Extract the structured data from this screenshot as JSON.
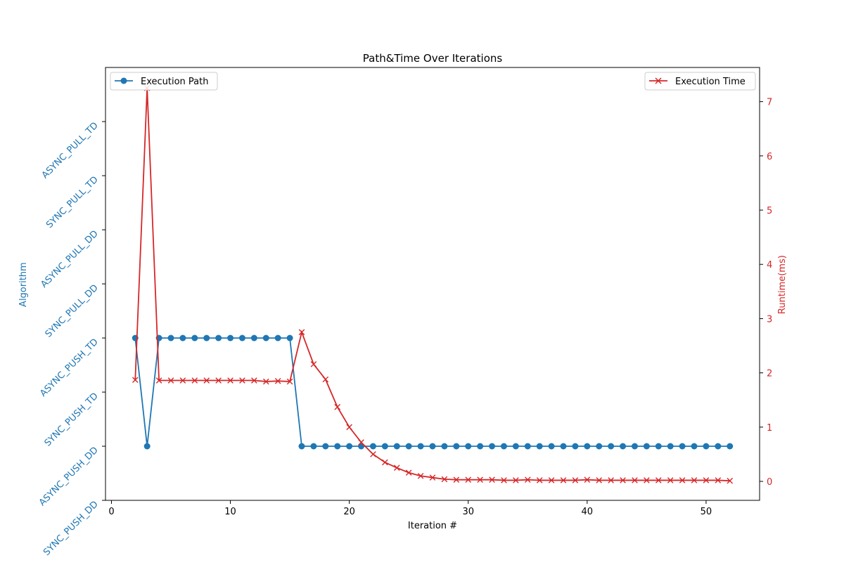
{
  "chart_data": {
    "type": "line",
    "title": "Path&Time Over Iterations",
    "xlabel": "Iteration #",
    "ylabel_left": "Algorithm",
    "ylabel_right": "Runtime(ms)",
    "x_ticks": [
      0,
      10,
      20,
      30,
      40,
      50
    ],
    "x_tick_labels": [
      "0",
      "10",
      "20",
      "30",
      "40",
      "50"
    ],
    "left_categories": [
      "SYNC_PUSH_DD",
      "ASYNC_PUSH_DD",
      "SYNC_PUSH_TD",
      "ASYNC_PUSH_TD",
      "SYNC_PULL_DD",
      "ASYNC_PULL_DD",
      "SYNC_PULL_TD",
      "ASYNC_PULL_TD"
    ],
    "right_ticks": [
      0,
      1,
      2,
      3,
      4,
      5,
      6,
      7
    ],
    "right_tick_labels": [
      "0",
      "1",
      "2",
      "3",
      "4",
      "5",
      "6",
      "7"
    ],
    "x": [
      2,
      3,
      4,
      5,
      6,
      7,
      8,
      9,
      10,
      11,
      12,
      13,
      14,
      15,
      16,
      17,
      18,
      19,
      20,
      21,
      22,
      23,
      24,
      25,
      26,
      27,
      28,
      29,
      30,
      31,
      32,
      33,
      34,
      35,
      36,
      37,
      38,
      39,
      40,
      41,
      42,
      43,
      44,
      45,
      46,
      47,
      48,
      49,
      50,
      51,
      52
    ],
    "series": [
      {
        "name": "Execution Path",
        "axis": "left",
        "marker": "o",
        "color": "#1f77b4",
        "values": [
          "ASYNC_PUSH_TD",
          "ASYNC_PUSH_DD",
          "ASYNC_PUSH_TD",
          "ASYNC_PUSH_TD",
          "ASYNC_PUSH_TD",
          "ASYNC_PUSH_TD",
          "ASYNC_PUSH_TD",
          "ASYNC_PUSH_TD",
          "ASYNC_PUSH_TD",
          "ASYNC_PUSH_TD",
          "ASYNC_PUSH_TD",
          "ASYNC_PUSH_TD",
          "ASYNC_PUSH_TD",
          "ASYNC_PUSH_TD",
          "ASYNC_PUSH_DD",
          "ASYNC_PUSH_DD",
          "ASYNC_PUSH_DD",
          "ASYNC_PUSH_DD",
          "ASYNC_PUSH_DD",
          "ASYNC_PUSH_DD",
          "ASYNC_PUSH_DD",
          "ASYNC_PUSH_DD",
          "ASYNC_PUSH_DD",
          "ASYNC_PUSH_DD",
          "ASYNC_PUSH_DD",
          "ASYNC_PUSH_DD",
          "ASYNC_PUSH_DD",
          "ASYNC_PUSH_DD",
          "ASYNC_PUSH_DD",
          "ASYNC_PUSH_DD",
          "ASYNC_PUSH_DD",
          "ASYNC_PUSH_DD",
          "ASYNC_PUSH_DD",
          "ASYNC_PUSH_DD",
          "ASYNC_PUSH_DD",
          "ASYNC_PUSH_DD",
          "ASYNC_PUSH_DD",
          "ASYNC_PUSH_DD",
          "ASYNC_PUSH_DD",
          "ASYNC_PUSH_DD",
          "ASYNC_PUSH_DD",
          "ASYNC_PUSH_DD",
          "ASYNC_PUSH_DD",
          "ASYNC_PUSH_DD",
          "ASYNC_PUSH_DD",
          "ASYNC_PUSH_DD",
          "ASYNC_PUSH_DD",
          "ASYNC_PUSH_DD",
          "ASYNC_PUSH_DD",
          "ASYNC_PUSH_DD",
          "ASYNC_PUSH_DD"
        ]
      },
      {
        "name": "Execution Time",
        "axis": "right",
        "marker": "x",
        "color": "#d62728",
        "values": [
          1.87,
          7.25,
          1.86,
          1.86,
          1.86,
          1.86,
          1.86,
          1.86,
          1.86,
          1.86,
          1.86,
          1.84,
          1.85,
          1.84,
          2.75,
          2.16,
          1.88,
          1.37,
          1.0,
          0.72,
          0.5,
          0.35,
          0.25,
          0.16,
          0.1,
          0.07,
          0.04,
          0.03,
          0.03,
          0.03,
          0.03,
          0.02,
          0.02,
          0.03,
          0.02,
          0.02,
          0.02,
          0.02,
          0.03,
          0.02,
          0.02,
          0.02,
          0.02,
          0.02,
          0.02,
          0.02,
          0.02,
          0.02,
          0.02,
          0.02,
          0.01
        ]
      }
    ],
    "xlim": [
      -0.5,
      54.5
    ],
    "ylim_right": [
      -0.35,
      7.63
    ],
    "legend_left": "upper-left",
    "legend_right": "upper-right",
    "grid": false
  }
}
